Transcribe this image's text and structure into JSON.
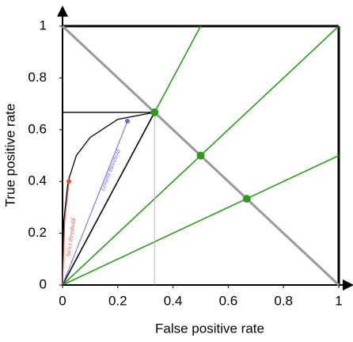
{
  "chart_data": {
    "type": "line",
    "xlabel": "False positive rate",
    "ylabel": "True positive rate",
    "xlim": [
      0,
      1
    ],
    "ylim": [
      0,
      1
    ],
    "xticks": [
      0,
      0.2,
      0.4,
      0.6,
      0.8,
      1
    ],
    "yticks": [
      0,
      0.2,
      0.4,
      0.6,
      0.8,
      1
    ],
    "series": [
      {
        "color": "#999999",
        "x": [
          0,
          1
        ],
        "values": [
          1,
          0
        ]
      },
      {
        "color": "#2e9a1e",
        "x": [
          0,
          0.5
        ],
        "values": [
          0,
          1
        ]
      },
      {
        "color": "#2e9a1e",
        "x": [
          0,
          1
        ],
        "values": [
          0,
          1
        ]
      },
      {
        "color": "#2e9a1e",
        "x": [
          0,
          1
        ],
        "values": [
          0,
          0.5
        ]
      },
      {
        "color": "#000000",
        "x": [
          0,
          0.333
        ],
        "values": [
          0,
          0.667
        ]
      },
      {
        "color": "#000000",
        "x": [
          0.333,
          0.333,
          0.333
        ],
        "values": [
          0,
          0,
          0
        ]
      },
      {
        "color": "#000000",
        "x": [
          0,
          0.333
        ],
        "values": [
          0.667,
          0.667
        ]
      },
      {
        "color": "#bbbbbb",
        "x": [
          0.333,
          0.333
        ],
        "values": [
          0.667,
          0
        ]
      },
      {
        "color": "#000000",
        "x": [
          0,
          0.333
        ],
        "values": [
          0,
          0
        ]
      },
      {
        "color": "#000000",
        "x": [
          0,
          0.005,
          0.02,
          0.05,
          0.1,
          0.2,
          0.333
        ],
        "values": [
          0,
          0.25,
          0.4,
          0.5,
          0.57,
          0.64,
          0.667
        ]
      },
      {
        "color": "#6666ee",
        "x": [
          0,
          0.235
        ],
        "values": [
          0,
          0.633
        ]
      },
      {
        "color": "#dd5544",
        "x": [
          0,
          0.008,
          0.023
        ],
        "values": [
          0,
          0.25,
          0.4
        ]
      },
      {
        "color": "#2e9a1e",
        "mode": "markers",
        "x": [
          0.333,
          0.5,
          0.667
        ],
        "values": [
          0.667,
          0.5,
          0.333
        ]
      },
      {
        "color": "#6666ee",
        "mode": "markers",
        "x": [
          0.235
        ],
        "values": [
          0.633
        ]
      },
      {
        "color": "#dd5544",
        "mode": "markers",
        "x": [
          0.023
        ],
        "values": [
          0.4
        ]
      }
    ],
    "annotations": [
      "Strict threshold",
      "Lenient threshold"
    ]
  }
}
